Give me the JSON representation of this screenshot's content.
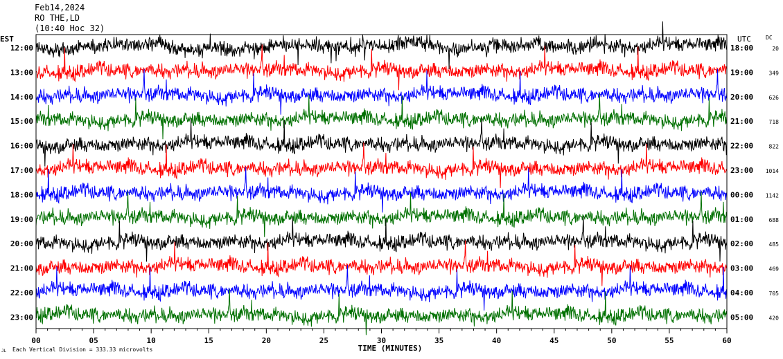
{
  "header": {
    "date": "Feb14,2024",
    "station": "RO THE,LD",
    "scale_note": "(10:40 Hoc 32)"
  },
  "footer": {
    "scale_text": "Each Vertical Division =  333.33 microvolts",
    "mark": "JL"
  },
  "chart_data": {
    "type": "line",
    "title": "",
    "xlabel": "TIME (MINUTES)",
    "ylabel_left": "EST",
    "ylabel_right": "UTC",
    "dc_label": "DC",
    "xlim": [
      0,
      60
    ],
    "x_ticks": [
      "00",
      "05",
      "10",
      "15",
      "20",
      "25",
      "30",
      "35",
      "40",
      "45",
      "50",
      "55",
      "60"
    ],
    "trace_colors": [
      "#000000",
      "#ff0000",
      "#0000ff",
      "#007000"
    ],
    "grid": false,
    "rows": [
      {
        "est": "12:00",
        "utc": "18:00",
        "dc": "20"
      },
      {
        "est": "13:00",
        "utc": "19:00",
        "dc": "349"
      },
      {
        "est": "14:00",
        "utc": "20:00",
        "dc": "626"
      },
      {
        "est": "15:00",
        "utc": "21:00",
        "dc": "718"
      },
      {
        "est": "16:00",
        "utc": "22:00",
        "dc": "822"
      },
      {
        "est": "17:00",
        "utc": "23:00",
        "dc": "1014"
      },
      {
        "est": "18:00",
        "utc": "00:00",
        "dc": "1142"
      },
      {
        "est": "19:00",
        "utc": "01:00",
        "dc": "688"
      },
      {
        "est": "20:00",
        "utc": "02:00",
        "dc": "485"
      },
      {
        "est": "21:00",
        "utc": "03:00",
        "dc": "469"
      },
      {
        "est": "22:00",
        "utc": "04:00",
        "dc": "705"
      },
      {
        "est": "23:00",
        "utc": "05:00",
        "dc": "420"
      }
    ]
  }
}
